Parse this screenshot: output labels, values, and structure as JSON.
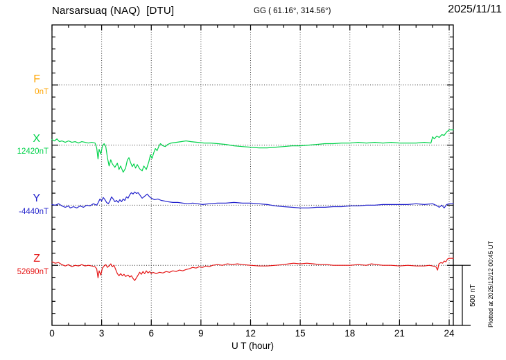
{
  "header": {
    "title": "Narsarsuaq (NAQ)  [DTU]",
    "coords": "GG ( 61.16°, 314.56°)",
    "date": "2025/11/11"
  },
  "footer": {
    "plotted_at": "Plotted at 2025/12/12 00:45 UT"
  },
  "chart_data": {
    "type": "line",
    "xlabel": "U T (hour)",
    "x_ticks": [
      0,
      3,
      6,
      9,
      12,
      15,
      18,
      21,
      24
    ],
    "x_range": [
      0,
      24
    ],
    "division_nT": 500,
    "scale_bar_label": "500 nT",
    "grid": "dotted vertical lines every 3 hours, dotted horizontal baseline per component",
    "legend_position": "left margin (component letter above its baseline value)",
    "series": [
      {
        "name": "F",
        "base_label": "0nT",
        "color": "#ffa500",
        "points": []
      },
      {
        "name": "X",
        "base_label": "12420nT",
        "color": "#00d24a",
        "points": [
          [
            0,
            46
          ],
          [
            0.15,
            35
          ],
          [
            0.3,
            52
          ],
          [
            0.45,
            29
          ],
          [
            0.6,
            35
          ],
          [
            0.8,
            23
          ],
          [
            1,
            35
          ],
          [
            1.2,
            23
          ],
          [
            1.4,
            29
          ],
          [
            1.6,
            17
          ],
          [
            1.8,
            29
          ],
          [
            2,
            23
          ],
          [
            2.2,
            17
          ],
          [
            2.4,
            23
          ],
          [
            2.6,
            17
          ],
          [
            2.7,
            -23
          ],
          [
            2.78,
            -116
          ],
          [
            2.85,
            -35
          ],
          [
            2.95,
            -75
          ],
          [
            3.05,
            -6
          ],
          [
            3.15,
            12
          ],
          [
            3.25,
            -12
          ],
          [
            3.35,
            -104
          ],
          [
            3.45,
            -174
          ],
          [
            3.55,
            -122
          ],
          [
            3.65,
            -156
          ],
          [
            3.8,
            -185
          ],
          [
            3.95,
            -150
          ],
          [
            4.05,
            -203
          ],
          [
            4.15,
            -174
          ],
          [
            4.3,
            -226
          ],
          [
            4.45,
            -191
          ],
          [
            4.55,
            -127
          ],
          [
            4.65,
            -104
          ],
          [
            4.75,
            -145
          ],
          [
            4.85,
            -179
          ],
          [
            4.95,
            -156
          ],
          [
            5.05,
            -191
          ],
          [
            5.15,
            -162
          ],
          [
            5.3,
            -197
          ],
          [
            5.45,
            -214
          ],
          [
            5.55,
            -174
          ],
          [
            5.7,
            -203
          ],
          [
            5.85,
            -139
          ],
          [
            5.95,
            -81
          ],
          [
            6.05,
            -110
          ],
          [
            6.15,
            -64
          ],
          [
            6.25,
            -29
          ],
          [
            6.35,
            -46
          ],
          [
            6.45,
            -12
          ],
          [
            6.55,
            12
          ],
          [
            6.7,
            -6
          ],
          [
            6.85,
            -12
          ],
          [
            7,
            6
          ],
          [
            7.2,
            17
          ],
          [
            7.5,
            23
          ],
          [
            7.8,
            29
          ],
          [
            8.1,
            35
          ],
          [
            8.4,
            29
          ],
          [
            8.8,
            23
          ],
          [
            9.2,
            17
          ],
          [
            9.6,
            17
          ],
          [
            10,
            12
          ],
          [
            10.5,
            6
          ],
          [
            11,
            -6
          ],
          [
            11.5,
            -12
          ],
          [
            12,
            -17
          ],
          [
            12.5,
            -23
          ],
          [
            13,
            -23
          ],
          [
            13.5,
            -17
          ],
          [
            14,
            -12
          ],
          [
            14.5,
            -6
          ],
          [
            15,
            -6
          ],
          [
            15.5,
            0
          ],
          [
            16,
            6
          ],
          [
            16.5,
            12
          ],
          [
            17,
            12
          ],
          [
            17.5,
            17
          ],
          [
            18,
            17
          ],
          [
            18.5,
            23
          ],
          [
            19,
            17
          ],
          [
            19.5,
            23
          ],
          [
            20,
            17
          ],
          [
            20.5,
            23
          ],
          [
            21,
            17
          ],
          [
            21.5,
            17
          ],
          [
            22,
            17
          ],
          [
            22.5,
            23
          ],
          [
            22.9,
            17
          ],
          [
            23,
            69
          ],
          [
            23.1,
            52
          ],
          [
            23.25,
            75
          ],
          [
            23.4,
            64
          ],
          [
            23.55,
            87
          ],
          [
            23.7,
            81
          ],
          [
            23.85,
            110
          ],
          [
            24,
            127
          ]
        ]
      },
      {
        "name": "Y",
        "base_label": "-4440nT",
        "color": "#2222cc",
        "points": [
          [
            0,
            6
          ],
          [
            0.2,
            0
          ],
          [
            0.4,
            12
          ],
          [
            0.6,
            -6
          ],
          [
            0.8,
            -17
          ],
          [
            1,
            -6
          ],
          [
            1.1,
            -23
          ],
          [
            1.3,
            -12
          ],
          [
            1.5,
            -23
          ],
          [
            1.7,
            -6
          ],
          [
            1.9,
            -17
          ],
          [
            2.1,
            0
          ],
          [
            2.3,
            -6
          ],
          [
            2.5,
            12
          ],
          [
            2.7,
            0
          ],
          [
            2.8,
            23
          ],
          [
            2.9,
            52
          ],
          [
            3,
            35
          ],
          [
            3.1,
            64
          ],
          [
            3.2,
            46
          ],
          [
            3.3,
            23
          ],
          [
            3.4,
            12
          ],
          [
            3.5,
            35
          ],
          [
            3.6,
            69
          ],
          [
            3.7,
            52
          ],
          [
            3.8,
            29
          ],
          [
            3.9,
            40
          ],
          [
            4,
            23
          ],
          [
            4.1,
            46
          ],
          [
            4.2,
            29
          ],
          [
            4.3,
            52
          ],
          [
            4.4,
            40
          ],
          [
            4.5,
            69
          ],
          [
            4.6,
            58
          ],
          [
            4.7,
            87
          ],
          [
            4.8,
            104
          ],
          [
            4.9,
            93
          ],
          [
            5,
            110
          ],
          [
            5.1,
            98
          ],
          [
            5.2,
            104
          ],
          [
            5.3,
            87
          ],
          [
            5.45,
            58
          ],
          [
            5.6,
            75
          ],
          [
            5.75,
            93
          ],
          [
            5.9,
            69
          ],
          [
            6,
            58
          ],
          [
            6.2,
            46
          ],
          [
            6.4,
            52
          ],
          [
            6.6,
            40
          ],
          [
            6.8,
            35
          ],
          [
            7,
            29
          ],
          [
            7.3,
            23
          ],
          [
            7.6,
            23
          ],
          [
            7.9,
            17
          ],
          [
            8.2,
            12
          ],
          [
            8.5,
            17
          ],
          [
            8.8,
            12
          ],
          [
            9.1,
            6
          ],
          [
            9.5,
            12
          ],
          [
            10,
            17
          ],
          [
            10.5,
            17
          ],
          [
            11,
            23
          ],
          [
            11.5,
            17
          ],
          [
            12,
            17
          ],
          [
            12.5,
            12
          ],
          [
            13,
            6
          ],
          [
            13.5,
            -6
          ],
          [
            14,
            -12
          ],
          [
            14.5,
            -17
          ],
          [
            15,
            -23
          ],
          [
            15.5,
            -23
          ],
          [
            16,
            -17
          ],
          [
            16.5,
            -17
          ],
          [
            17,
            -12
          ],
          [
            17.5,
            -12
          ],
          [
            18,
            -6
          ],
          [
            18.5,
            -6
          ],
          [
            19,
            0
          ],
          [
            19.5,
            0
          ],
          [
            20,
            6
          ],
          [
            20.5,
            6
          ],
          [
            21,
            6
          ],
          [
            21.5,
            6
          ],
          [
            22,
            12
          ],
          [
            22.5,
            6
          ],
          [
            23,
            12
          ],
          [
            23.2,
            0
          ],
          [
            23.4,
            -17
          ],
          [
            23.55,
            0
          ],
          [
            23.7,
            -23
          ],
          [
            23.85,
            6
          ],
          [
            24,
            12
          ]
        ]
      },
      {
        "name": "Z",
        "base_label": "52690nT",
        "color": "#e51515",
        "points": [
          [
            0,
            29
          ],
          [
            0.2,
            17
          ],
          [
            0.4,
            23
          ],
          [
            0.6,
            6
          ],
          [
            0.8,
            -6
          ],
          [
            1,
            6
          ],
          [
            1.2,
            -12
          ],
          [
            1.4,
            0
          ],
          [
            1.6,
            -6
          ],
          [
            1.8,
            6
          ],
          [
            2,
            -6
          ],
          [
            2.2,
            0
          ],
          [
            2.4,
            -6
          ],
          [
            2.6,
            -12
          ],
          [
            2.7,
            -29
          ],
          [
            2.78,
            -104
          ],
          [
            2.85,
            -46
          ],
          [
            2.95,
            -81
          ],
          [
            3.05,
            -23
          ],
          [
            3.15,
            -6
          ],
          [
            3.25,
            6
          ],
          [
            3.35,
            -17
          ],
          [
            3.45,
            -6
          ],
          [
            3.55,
            12
          ],
          [
            3.65,
            -12
          ],
          [
            3.75,
            0
          ],
          [
            3.85,
            -35
          ],
          [
            3.95,
            -69
          ],
          [
            4.05,
            -87
          ],
          [
            4.15,
            -69
          ],
          [
            4.25,
            -87
          ],
          [
            4.35,
            -75
          ],
          [
            4.45,
            -93
          ],
          [
            4.6,
            -81
          ],
          [
            4.7,
            -98
          ],
          [
            4.8,
            -87
          ],
          [
            4.9,
            -110
          ],
          [
            5,
            -127
          ],
          [
            5.1,
            -104
          ],
          [
            5.2,
            -81
          ],
          [
            5.3,
            -58
          ],
          [
            5.4,
            -75
          ],
          [
            5.5,
            -52
          ],
          [
            5.6,
            -69
          ],
          [
            5.7,
            -46
          ],
          [
            5.8,
            -64
          ],
          [
            5.9,
            -52
          ],
          [
            6,
            -69
          ],
          [
            6.1,
            -58
          ],
          [
            6.3,
            -69
          ],
          [
            6.5,
            -58
          ],
          [
            6.7,
            -64
          ],
          [
            6.9,
            -52
          ],
          [
            7.1,
            -58
          ],
          [
            7.3,
            -46
          ],
          [
            7.5,
            -52
          ],
          [
            7.7,
            -40
          ],
          [
            7.9,
            -46
          ],
          [
            8.1,
            -35
          ],
          [
            8.3,
            -29
          ],
          [
            8.5,
            -17
          ],
          [
            8.7,
            -23
          ],
          [
            8.9,
            -12
          ],
          [
            9.1,
            -17
          ],
          [
            9.3,
            -6
          ],
          [
            9.5,
            -12
          ],
          [
            9.7,
            0
          ],
          [
            10,
            6
          ],
          [
            10.3,
            0
          ],
          [
            10.6,
            12
          ],
          [
            10.9,
            6
          ],
          [
            11.2,
            12
          ],
          [
            11.5,
            6
          ],
          [
            12,
            0
          ],
          [
            12.5,
            -6
          ],
          [
            13,
            -6
          ],
          [
            13.5,
            0
          ],
          [
            14,
            6
          ],
          [
            14.3,
            12
          ],
          [
            14.6,
            17
          ],
          [
            15,
            12
          ],
          [
            15.4,
            17
          ],
          [
            15.8,
            12
          ],
          [
            16.2,
            6
          ],
          [
            16.6,
            6
          ],
          [
            17,
            0
          ],
          [
            17.5,
            0
          ],
          [
            18,
            0
          ],
          [
            18.5,
            6
          ],
          [
            19,
            0
          ],
          [
            19.3,
            12
          ],
          [
            19.6,
            6
          ],
          [
            20,
            0
          ],
          [
            20.5,
            0
          ],
          [
            21,
            -6
          ],
          [
            21.5,
            0
          ],
          [
            22,
            -6
          ],
          [
            22.5,
            -6
          ],
          [
            22.8,
            0
          ],
          [
            23,
            -6
          ],
          [
            23.2,
            -12
          ],
          [
            23.3,
            -40
          ],
          [
            23.38,
            12
          ],
          [
            23.5,
            23
          ],
          [
            23.6,
            17
          ],
          [
            23.7,
            35
          ],
          [
            23.8,
            29
          ],
          [
            23.9,
            52
          ],
          [
            24,
            58
          ]
        ]
      }
    ]
  }
}
